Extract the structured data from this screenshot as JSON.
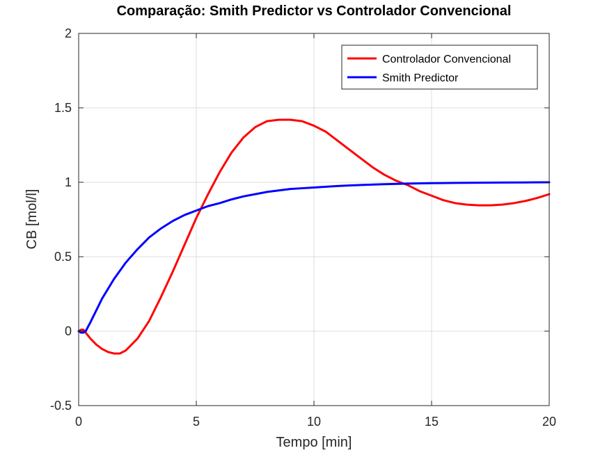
{
  "chart_data": {
    "type": "line",
    "title": "Comparação: Smith Predictor vs Controlador Convencional",
    "xlabel": "Tempo [min]",
    "ylabel": "CB [mol/l]",
    "xlim": [
      0,
      20
    ],
    "ylim": [
      -0.5,
      2
    ],
    "xticks": [
      0,
      5,
      10,
      15,
      20
    ],
    "yticks": [
      -0.5,
      0,
      0.5,
      1,
      1.5,
      2
    ],
    "xtick_labels": [
      "0",
      "5",
      "10",
      "15",
      "20"
    ],
    "ytick_labels": [
      "-0.5",
      "0",
      "0.5",
      "1",
      "1.5",
      "2"
    ],
    "grid": true,
    "legend_position": "top-right",
    "series": [
      {
        "name": "Controlador Convencional",
        "color": "#ff0000",
        "x": [
          0,
          0.1,
          0.2,
          0.3,
          0.5,
          0.75,
          1,
          1.25,
          1.5,
          1.75,
          2,
          2.5,
          3,
          3.5,
          4,
          4.5,
          5,
          5.5,
          6,
          6.5,
          7,
          7.5,
          8,
          8.5,
          9,
          9.5,
          10,
          10.5,
          11,
          11.5,
          12,
          12.5,
          13,
          13.5,
          14,
          14.5,
          15,
          15.5,
          16,
          16.5,
          17,
          17.5,
          18,
          18.5,
          19,
          19.5,
          20
        ],
        "y": [
          0,
          0.01,
          0.01,
          -0.01,
          -0.05,
          -0.09,
          -0.12,
          -0.14,
          -0.15,
          -0.15,
          -0.13,
          -0.05,
          0.07,
          0.23,
          0.4,
          0.58,
          0.76,
          0.92,
          1.07,
          1.2,
          1.3,
          1.37,
          1.41,
          1.42,
          1.42,
          1.41,
          1.38,
          1.34,
          1.28,
          1.22,
          1.16,
          1.1,
          1.05,
          1.01,
          0.98,
          0.94,
          0.91,
          0.88,
          0.86,
          0.85,
          0.845,
          0.845,
          0.85,
          0.86,
          0.875,
          0.895,
          0.92
        ]
      },
      {
        "name": "Smith Predictor",
        "color": "#0000ff",
        "x": [
          0,
          0.1,
          0.2,
          0.3,
          0.5,
          0.75,
          1,
          1.5,
          2,
          2.5,
          3,
          3.5,
          4,
          4.5,
          5,
          5.5,
          6,
          6.5,
          7,
          7.5,
          8,
          8.5,
          9,
          9.5,
          10,
          11,
          12,
          13,
          14,
          15,
          16,
          17,
          18,
          19,
          20
        ],
        "y": [
          0,
          -0.01,
          -0.01,
          0.0,
          0.06,
          0.14,
          0.22,
          0.35,
          0.46,
          0.55,
          0.63,
          0.69,
          0.74,
          0.78,
          0.81,
          0.84,
          0.86,
          0.885,
          0.905,
          0.92,
          0.935,
          0.945,
          0.955,
          0.96,
          0.965,
          0.975,
          0.982,
          0.987,
          0.991,
          0.994,
          0.996,
          0.997,
          0.998,
          0.999,
          1.0
        ]
      }
    ]
  }
}
